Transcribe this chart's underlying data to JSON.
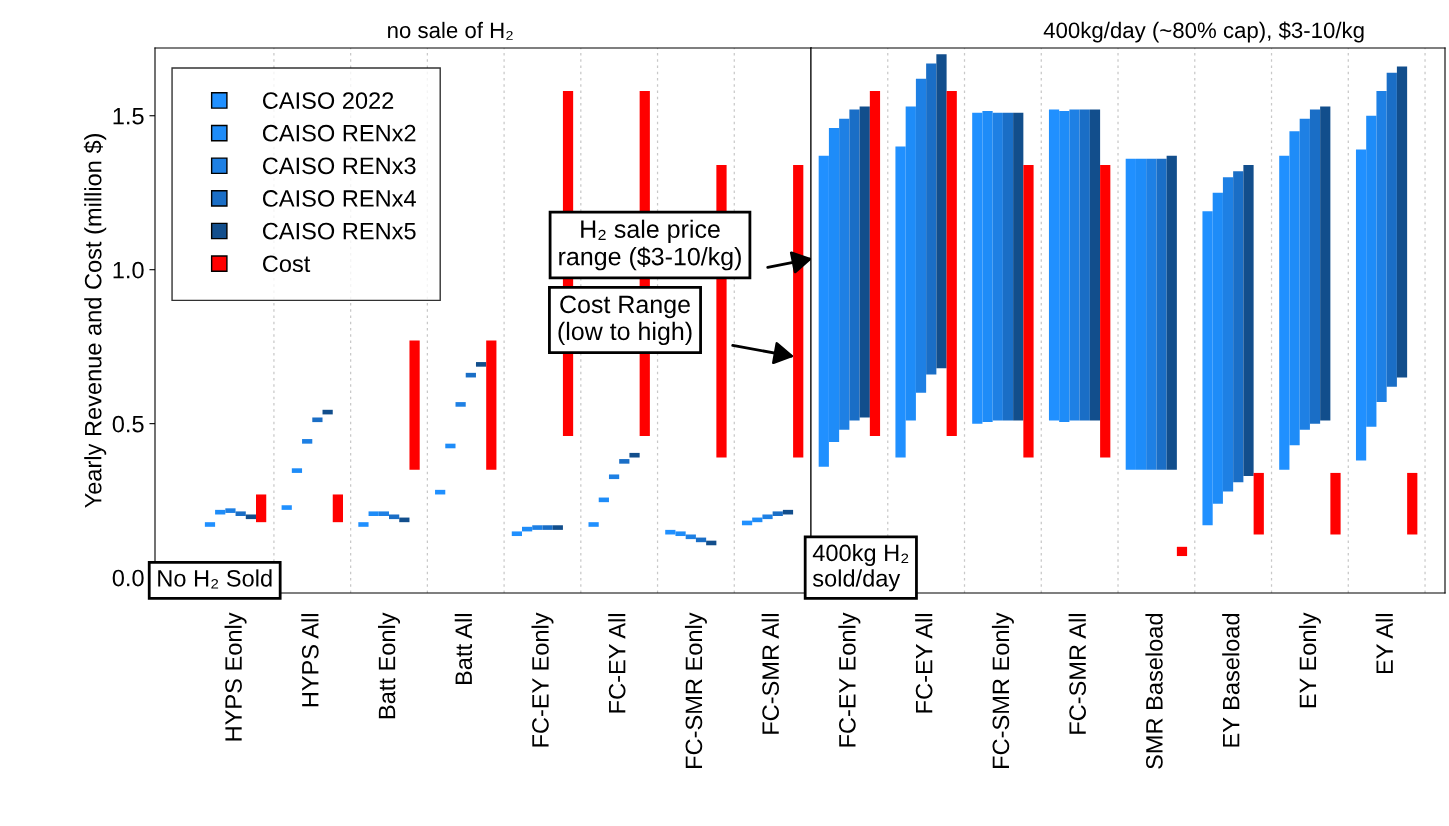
{
  "chart_data": [
    {
      "type": "bar",
      "title": "no sale of H₂",
      "ylabel": "Yearly Revenue and Cost (million $)",
      "categories": [
        "HYPS Eonly",
        "HYPS All",
        "Batt Eonly",
        "Batt All",
        "FC-EY Eonly",
        "FC-EY All",
        "FC-SMR Eonly",
        "FC-SMR All"
      ],
      "series": [
        {
          "name": "CAISO 2022",
          "color": "#2090ff",
          "base": [
            0.165,
            0.22,
            0.165,
            0.27,
            0.135,
            0.165,
            0.14,
            0.17
          ],
          "values": [
            0.015,
            0.015,
            0.015,
            0.015,
            0.015,
            0.015,
            0.015,
            0.015
          ]
        },
        {
          "name": "CAISO RENx2",
          "color": "#1e8cf8",
          "base": [
            0.205,
            0.34,
            0.2,
            0.42,
            0.15,
            0.245,
            0.135,
            0.18
          ],
          "values": [
            0.015,
            0.015,
            0.015,
            0.015,
            0.015,
            0.015,
            0.015,
            0.015
          ]
        },
        {
          "name": "CAISO RENx3",
          "color": "#1e80e4",
          "base": [
            0.21,
            0.435,
            0.2,
            0.555,
            0.155,
            0.32,
            0.125,
            0.19
          ],
          "values": [
            0.015,
            0.015,
            0.015,
            0.015,
            0.015,
            0.015,
            0.015,
            0.015
          ]
        },
        {
          "name": "CAISO RENx4",
          "color": "#1a6ec6",
          "base": [
            0.2,
            0.505,
            0.19,
            0.65,
            0.155,
            0.37,
            0.115,
            0.2
          ],
          "values": [
            0.015,
            0.015,
            0.015,
            0.015,
            0.015,
            0.015,
            0.015,
            0.015
          ]
        },
        {
          "name": "CAISO RENx5",
          "color": "#124e8c",
          "base": [
            0.19,
            0.53,
            0.18,
            0.685,
            0.155,
            0.39,
            0.105,
            0.205
          ],
          "values": [
            0.015,
            0.015,
            0.015,
            0.015,
            0.015,
            0.015,
            0.015,
            0.015
          ]
        },
        {
          "name": "Cost",
          "color": "#ff0000",
          "base": [
            0.18,
            0.18,
            0.35,
            0.35,
            0.46,
            0.46,
            0.39,
            0.39
          ],
          "values": [
            0.09,
            0.09,
            0.42,
            0.42,
            1.12,
            1.12,
            0.95,
            0.95
          ]
        }
      ],
      "ylim": [
        -0.05,
        1.72
      ],
      "yticks": [
        {
          "value": 0,
          "label": "0.0"
        },
        {
          "value": 0.5,
          "label": "0.5"
        },
        {
          "value": 1,
          "label": "1.0"
        },
        {
          "value": 1.5,
          "label": "1.5"
        }
      ],
      "grid": "x",
      "legend": "top left",
      "annotations": [
        "No H₂ Sold",
        "Cost Range\n(low to high)"
      ]
    },
    {
      "type": "bar",
      "title": "400kg/day (~80% cap), $3-10/kg",
      "categories": [
        "FC-EY Eonly",
        "FC-EY All",
        "FC-SMR Eonly",
        "FC-SMR All",
        "SMR Baseload",
        "EY Baseload",
        "EY Eonly",
        "EY All"
      ],
      "series": [
        {
          "color": "#2090ff",
          "base": [
            0.36,
            0.39,
            0.5,
            0.51,
            0.35,
            0.17,
            0.35,
            0.38
          ],
          "values": [
            1.01,
            1.01,
            1.01,
            1.01,
            1.01,
            1.02,
            1.02,
            1.01
          ]
        },
        {
          "color": "#1e8cf8",
          "base": [
            0.44,
            0.51,
            0.505,
            0.505,
            0.35,
            0.24,
            0.43,
            0.49
          ],
          "values": [
            1.02,
            1.02,
            1.01,
            1.01,
            1.01,
            1.01,
            1.02,
            1.01
          ]
        },
        {
          "color": "#1e80e4",
          "base": [
            0.48,
            0.6,
            0.51,
            0.51,
            0.35,
            0.28,
            0.48,
            0.57
          ],
          "values": [
            1.01,
            1.02,
            1.0,
            1.01,
            1.01,
            1.02,
            1.01,
            1.01
          ]
        },
        {
          "color": "#1a6ec6",
          "base": [
            0.51,
            0.66,
            0.51,
            0.51,
            0.35,
            0.31,
            0.5,
            0.62
          ],
          "values": [
            1.01,
            1.01,
            1.0,
            1.01,
            1.01,
            1.01,
            1.02,
            1.02
          ]
        },
        {
          "color": "#124e8c",
          "base": [
            0.52,
            0.68,
            0.51,
            0.51,
            0.35,
            0.33,
            0.51,
            0.65
          ],
          "values": [
            1.01,
            1.02,
            1.0,
            1.01,
            1.02,
            1.01,
            1.02,
            1.01
          ]
        },
        {
          "color": "#ff0000",
          "base": [
            0.46,
            0.46,
            0.39,
            0.39,
            0.07,
            0.14,
            0.14,
            0.14
          ],
          "values": [
            1.12,
            1.12,
            0.95,
            0.95,
            0.03,
            0.2,
            0.2,
            0.2
          ]
        }
      ],
      "ylim": [
        -0.05,
        1.72
      ],
      "tick_labels": "x",
      "grid": "x",
      "annotations": [
        "400kg H₂\nsold/day",
        "H₂ sale price\nrange ($3-10/kg)"
      ]
    }
  ]
}
